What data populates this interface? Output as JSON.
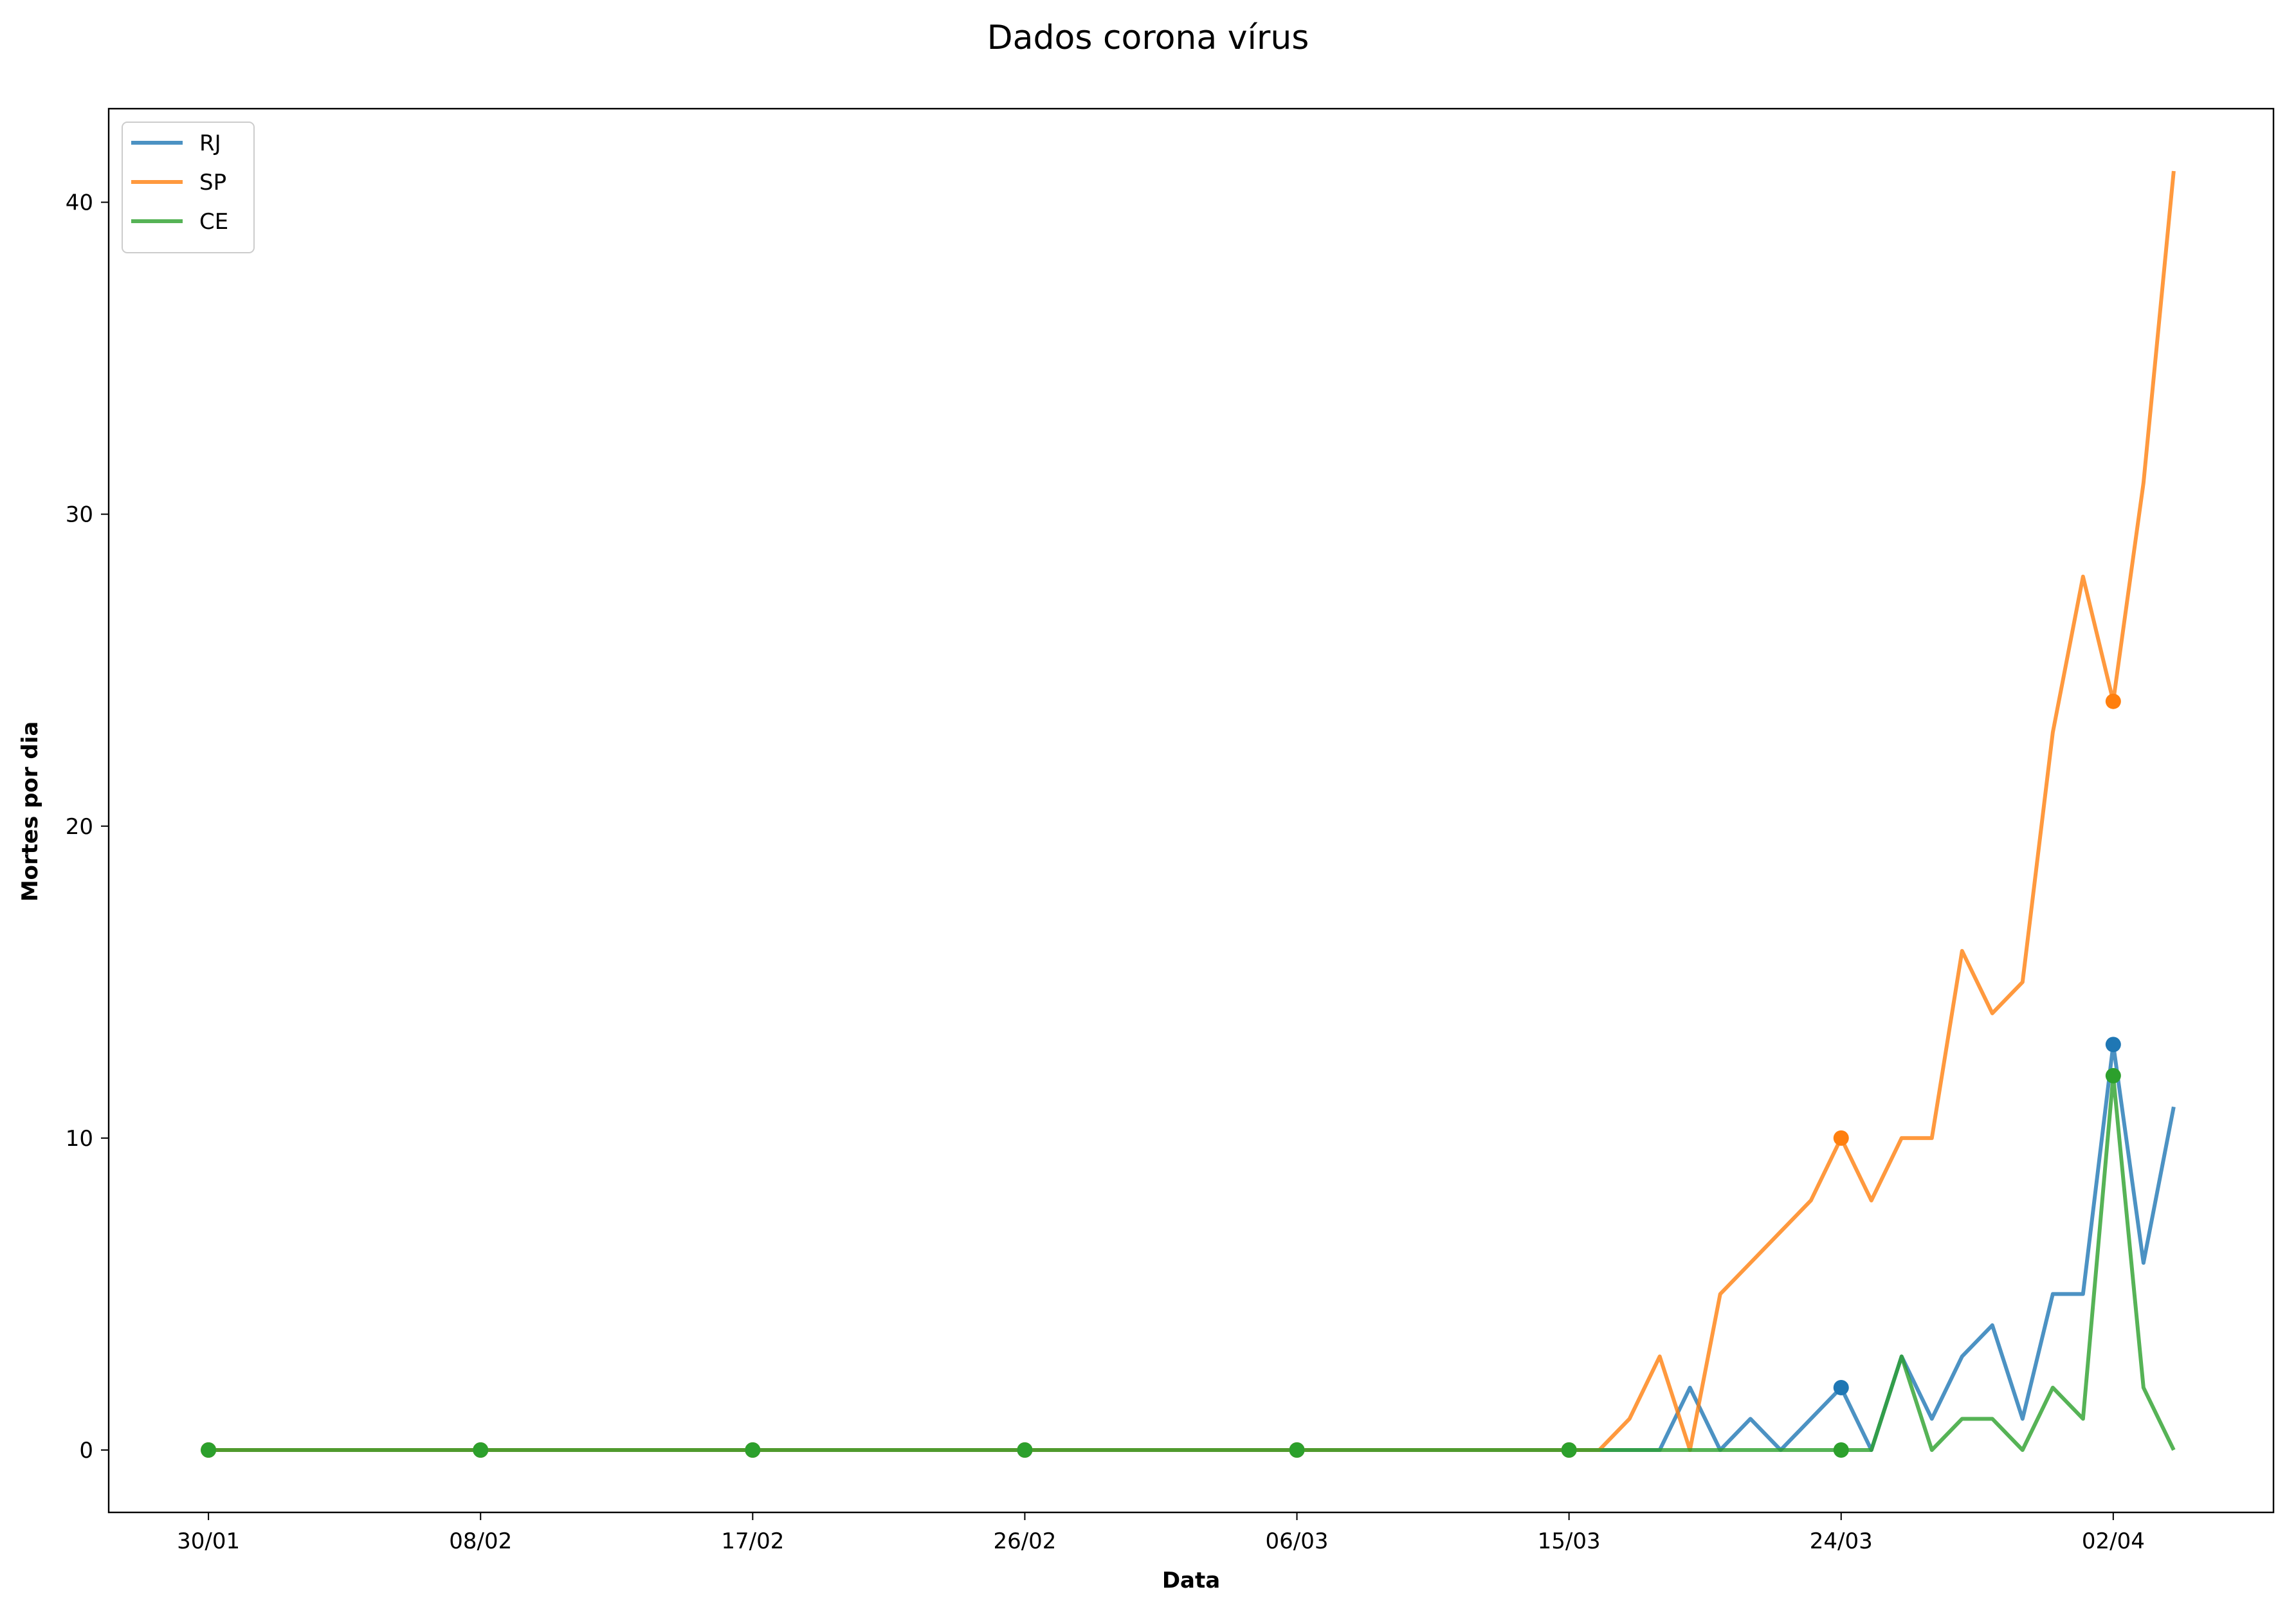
{
  "chart_data": {
    "type": "line",
    "title": "Dados corona vírus",
    "xlabel": "Data",
    "ylabel": "Mortes por dia",
    "x_start_date": "2020-01-30",
    "x_tick_labels": [
      "30/01",
      "08/02",
      "17/02",
      "26/02",
      "06/03",
      "15/03",
      "24/03",
      "02/04"
    ],
    "x_tick_days": [
      0,
      9,
      18,
      27,
      36,
      45,
      54,
      63
    ],
    "ylim": [
      -2,
      43
    ],
    "xlim": [
      -3.3,
      68.3
    ],
    "y_ticks": [
      0,
      10,
      20,
      30,
      40
    ],
    "grid": false,
    "legend_position": "top-left",
    "marker_days": [
      0,
      9,
      18,
      27,
      36,
      45,
      54,
      63
    ],
    "series": [
      {
        "name": "RJ",
        "color": "#1f77b4",
        "x_days": [
          0,
          45,
          46,
          47,
          48,
          49,
          50,
          51,
          52,
          53,
          54,
          55,
          56,
          57,
          58,
          59,
          60,
          61,
          62,
          63,
          64,
          65
        ],
        "values": [
          0,
          0,
          0,
          0,
          0,
          2,
          0,
          1,
          0,
          1,
          2,
          0,
          3,
          1,
          3,
          4,
          1,
          5,
          5,
          13,
          6,
          11
        ]
      },
      {
        "name": "SP",
        "color": "#ff7f0e",
        "x_days": [
          0,
          46,
          47,
          48,
          49,
          50,
          51,
          52,
          53,
          54,
          55,
          56,
          57,
          58,
          59,
          60,
          61,
          62,
          63,
          64,
          65
        ],
        "values": [
          0,
          0,
          1,
          3,
          0,
          5,
          6,
          7,
          8,
          10,
          8,
          10,
          10,
          16,
          14,
          15,
          23,
          28,
          24,
          31,
          41
        ]
      },
      {
        "name": "CE",
        "color": "#2ca02c",
        "x_days": [
          0,
          55,
          56,
          57,
          58,
          59,
          60,
          61,
          62,
          63,
          64,
          65
        ],
        "values": [
          0,
          0,
          3,
          0,
          1,
          1,
          0,
          2,
          1,
          12,
          2,
          0
        ]
      }
    ]
  }
}
